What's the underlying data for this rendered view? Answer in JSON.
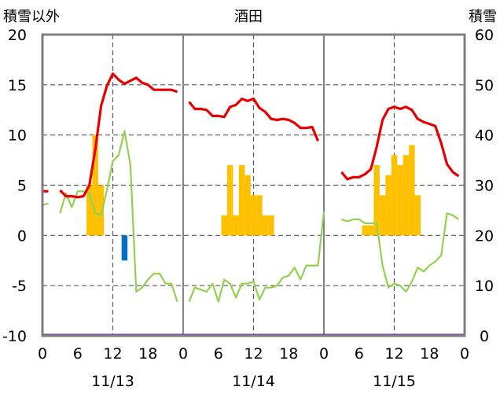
{
  "chart_data": {
    "type": "line",
    "title": "酒田",
    "y_left_label": "積雪以外",
    "y_right_label": "積雪",
    "y_left_range": [
      -10,
      20
    ],
    "y_left_ticks": [
      "20",
      "15",
      "10",
      "5",
      "0",
      "-5",
      "-10"
    ],
    "y_right_range": [
      0,
      60
    ],
    "y_right_ticks": [
      "60",
      "50",
      "40",
      "30",
      "20",
      "10",
      "0"
    ],
    "x_range_hours": [
      0,
      72
    ],
    "x_tick_hours": [
      0,
      6,
      12,
      18,
      24,
      30,
      36,
      42,
      48,
      54,
      60,
      66,
      72
    ],
    "x_tick_labels": [
      "0",
      "6",
      "12",
      "18",
      "0",
      "6",
      "12",
      "18",
      "0",
      "6",
      "12",
      "18",
      "0"
    ],
    "dates": [
      {
        "label": "11/13",
        "hour": 12
      },
      {
        "label": "11/14",
        "hour": 36
      },
      {
        "label": "11/15",
        "hour": 60
      }
    ],
    "colors": {
      "snow_depth": "#e60000",
      "temperature": "#92d050",
      "snowfall": "#ffc000",
      "precipitation": "#0070c0",
      "baseline": "#7030a0"
    },
    "snow_depth_segments": [
      [
        [
          0,
          28.8
        ],
        [
          1,
          28.8
        ]
      ],
      [
        [
          3,
          29.0
        ],
        [
          4,
          27.8
        ],
        [
          5,
          27.8
        ],
        [
          6,
          27.6
        ],
        [
          7,
          27.8
        ],
        [
          8,
          30.0
        ],
        [
          9,
          37.0
        ],
        [
          10,
          45.8
        ],
        [
          11,
          49.8
        ],
        [
          12,
          52.2
        ],
        [
          13,
          51.0
        ],
        [
          14,
          50.2
        ],
        [
          15,
          50.8
        ],
        [
          16,
          51.4
        ],
        [
          17,
          50.4
        ],
        [
          18,
          50.0
        ],
        [
          19,
          49.0
        ],
        [
          20,
          49.0
        ],
        [
          21,
          49.0
        ],
        [
          22,
          49.0
        ],
        [
          23,
          48.6
        ]
      ],
      [
        [
          25,
          46.6
        ],
        [
          26,
          45.2
        ],
        [
          27,
          45.2
        ],
        [
          28,
          45.0
        ],
        [
          29,
          43.8
        ],
        [
          30,
          43.8
        ],
        [
          31,
          43.6
        ],
        [
          32,
          45.6
        ],
        [
          33,
          46.0
        ],
        [
          34,
          47.2
        ],
        [
          35,
          46.8
        ],
        [
          36,
          47.2
        ],
        [
          37,
          45.4
        ],
        [
          38,
          44.6
        ],
        [
          39,
          43.2
        ],
        [
          40,
          43.0
        ],
        [
          41,
          43.2
        ],
        [
          42,
          43.0
        ],
        [
          43,
          42.4
        ],
        [
          44,
          41.4
        ],
        [
          45,
          41.4
        ],
        [
          46,
          41.6
        ],
        [
          47,
          38.8
        ]
      ],
      [
        [
          51,
          32.6
        ],
        [
          52,
          31.2
        ],
        [
          53,
          31.6
        ],
        [
          54,
          31.6
        ],
        [
          55,
          32.2
        ],
        [
          56,
          33.2
        ],
        [
          57,
          37.6
        ],
        [
          58,
          43.0
        ],
        [
          59,
          45.2
        ],
        [
          60,
          45.6
        ],
        [
          61,
          45.2
        ],
        [
          62,
          45.6
        ],
        [
          63,
          45.0
        ],
        [
          64,
          43.2
        ],
        [
          65,
          42.6
        ],
        [
          66,
          42.2
        ],
        [
          67,
          41.8
        ],
        [
          68,
          38.4
        ],
        [
          69,
          34.2
        ],
        [
          70,
          32.6
        ],
        [
          71,
          31.8
        ]
      ]
    ],
    "temperature_segments": [
      [
        [
          0,
          3.0
        ],
        [
          1,
          3.2
        ]
      ],
      [
        [
          3,
          2.2
        ],
        [
          4,
          4.2
        ],
        [
          5,
          2.8
        ],
        [
          6,
          4.4
        ],
        [
          7,
          4.4
        ],
        [
          8,
          4.2
        ],
        [
          9,
          2.2
        ],
        [
          10,
          2.0
        ],
        [
          11,
          4.5
        ],
        [
          12,
          7.4
        ],
        [
          13,
          8.0
        ],
        [
          14,
          10.4
        ],
        [
          15,
          7.0
        ],
        [
          16,
          -5.6
        ],
        [
          17,
          -5.2
        ],
        [
          18,
          -4.4
        ],
        [
          19,
          -3.8
        ],
        [
          20,
          -3.8
        ],
        [
          21,
          -4.8
        ],
        [
          22,
          -4.8
        ],
        [
          23,
          -6.6
        ]
      ],
      [
        [
          25,
          -6.6
        ],
        [
          26,
          -5.2
        ],
        [
          27,
          -5.4
        ],
        [
          28,
          -5.6
        ],
        [
          29,
          -4.8
        ],
        [
          30,
          -6.6
        ],
        [
          31,
          -4.4
        ],
        [
          32,
          -4.8
        ],
        [
          33,
          -6.2
        ],
        [
          34,
          -4.8
        ],
        [
          35,
          -4.8
        ],
        [
          36,
          -4.6
        ],
        [
          37,
          -6.4
        ],
        [
          38,
          -5.2
        ],
        [
          39,
          -5.2
        ],
        [
          40,
          -5.0
        ],
        [
          41,
          -4.2
        ],
        [
          42,
          -4.0
        ],
        [
          43,
          -3.2
        ],
        [
          44,
          -4.4
        ],
        [
          45,
          -3.0
        ],
        [
          46,
          -3.0
        ],
        [
          47,
          -3.0
        ],
        [
          48,
          2.4
        ]
      ],
      [
        [
          51,
          1.6
        ],
        [
          52,
          1.4
        ],
        [
          53,
          1.6
        ],
        [
          54,
          1.6
        ],
        [
          55,
          1.2
        ],
        [
          56,
          1.2
        ],
        [
          57,
          1.2
        ],
        [
          58,
          -3.0
        ],
        [
          59,
          -5.2
        ],
        [
          60,
          -4.8
        ],
        [
          61,
          -5.0
        ],
        [
          62,
          -5.6
        ],
        [
          63,
          -4.6
        ],
        [
          64,
          -3.2
        ],
        [
          65,
          -3.6
        ],
        [
          66,
          -3.0
        ],
        [
          67,
          -2.6
        ],
        [
          68,
          -2.0
        ],
        [
          69,
          2.2
        ],
        [
          70,
          2.0
        ],
        [
          71,
          1.6
        ]
      ]
    ],
    "snowfall_bars": [
      {
        "hour": 8,
        "value": 5
      },
      {
        "hour": 9,
        "value": 10
      },
      {
        "hour": 10,
        "value": 5
      },
      {
        "hour": 31,
        "value": 2
      },
      {
        "hour": 32,
        "value": 7
      },
      {
        "hour": 33,
        "value": 2
      },
      {
        "hour": 34,
        "value": 7
      },
      {
        "hour": 35,
        "value": 6
      },
      {
        "hour": 36,
        "value": 4
      },
      {
        "hour": 37,
        "value": 4
      },
      {
        "hour": 38,
        "value": 2
      },
      {
        "hour": 39,
        "value": 2
      },
      {
        "hour": 55,
        "value": 1
      },
      {
        "hour": 56,
        "value": 1
      },
      {
        "hour": 57,
        "value": 7
      },
      {
        "hour": 58,
        "value": 4
      },
      {
        "hour": 59,
        "value": 6
      },
      {
        "hour": 60,
        "value": 8
      },
      {
        "hour": 61,
        "value": 7
      },
      {
        "hour": 62,
        "value": 8
      },
      {
        "hour": 63,
        "value": 9
      },
      {
        "hour": 64,
        "value": 4
      }
    ],
    "precipitation_bars": [
      {
        "hour": 14,
        "value": -2.5
      }
    ],
    "baseline_value": -10
  }
}
